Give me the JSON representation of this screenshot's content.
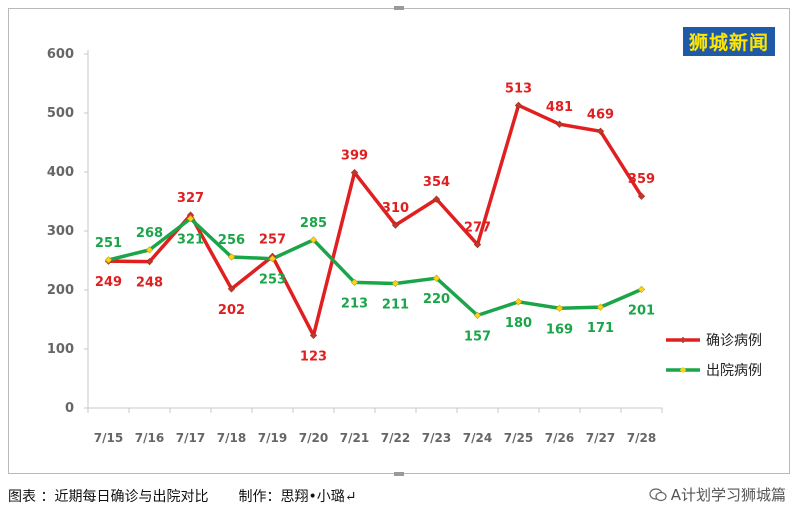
{
  "brand": "狮城新闻",
  "caption": {
    "left": "图表 ：近期每日确诊与出院对比",
    "right": "制作：思翔•小璐↵"
  },
  "watermark": "A计划学习狮城篇",
  "colors": {
    "confirmed": "#e02020",
    "discharged": "#1aa548",
    "marker": "#ffd21a"
  },
  "chart_data": {
    "type": "line",
    "categories": [
      "7/15",
      "7/16",
      "7/17",
      "7/18",
      "7/19",
      "7/20",
      "7/21",
      "7/22",
      "7/23",
      "7/24",
      "7/25",
      "7/26",
      "7/27",
      "7/28"
    ],
    "series": [
      {
        "name": "确诊病例",
        "values": [
          249,
          248,
          327,
          202,
          257,
          123,
          399,
          310,
          354,
          277,
          513,
          481,
          469,
          359
        ]
      },
      {
        "name": "出院病例",
        "values": [
          251,
          268,
          321,
          256,
          253,
          285,
          213,
          211,
          220,
          157,
          180,
          169,
          171,
          201
        ]
      }
    ],
    "ylim": [
      0,
      600
    ],
    "yticks": [
      0,
      100,
      200,
      300,
      400,
      500,
      600
    ],
    "grid": false,
    "legend": "right"
  }
}
